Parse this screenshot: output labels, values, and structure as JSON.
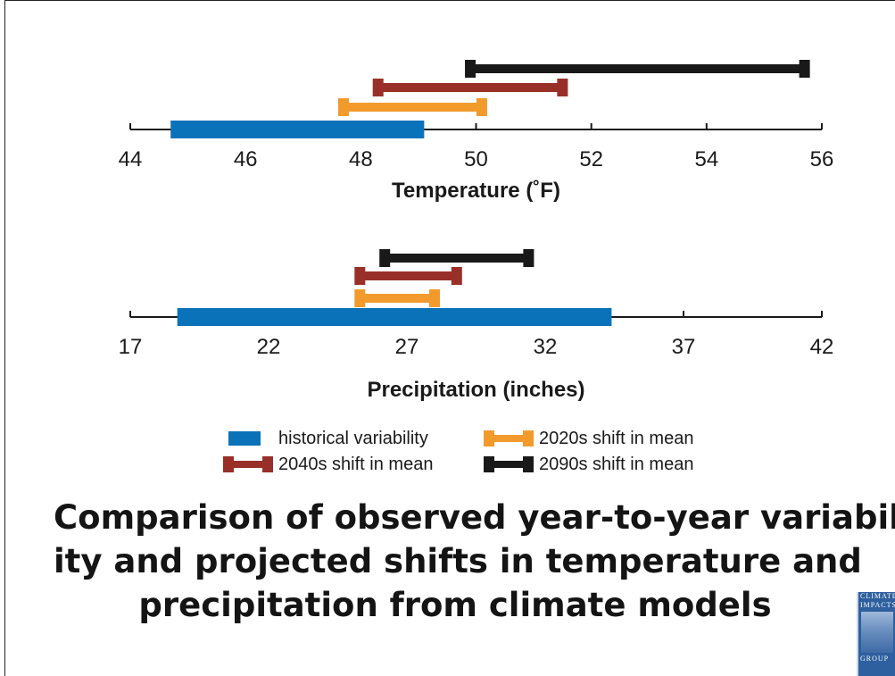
{
  "colors": {
    "historical": "#0a72b9",
    "s2020": "#f39a2d",
    "s2040": "#983029",
    "s2090": "#191919",
    "axis": "#1a1a1a"
  },
  "legend": {
    "historical": "historical variability",
    "s2020": "2020s shift in mean",
    "s2040": "2040s shift in mean",
    "s2090": "2090s shift in mean"
  },
  "caption": {
    "line1": "Comparison of observed year-to-year variabil-",
    "line2": "ity and projected shifts in temperature and",
    "line3": "precipitation from climate models"
  },
  "logo": {
    "line1": "CLIMATE",
    "line2": "IMPACTS",
    "line3": "GROUP"
  },
  "chart_data": [
    {
      "type": "range-bar",
      "xlabel": "Temperature (˚F)",
      "xlim": [
        44,
        56
      ],
      "ticks": [
        44,
        46,
        48,
        50,
        52,
        54,
        56
      ],
      "series": [
        {
          "name": "historical variability",
          "range": [
            44.7,
            49.1
          ],
          "color": "#0a72b9"
        },
        {
          "name": "2020s shift in mean",
          "range": [
            47.7,
            50.1
          ],
          "color": "#f39a2d"
        },
        {
          "name": "2040s shift in mean",
          "range": [
            48.3,
            51.5
          ],
          "color": "#983029"
        },
        {
          "name": "2090s shift in mean",
          "range": [
            49.9,
            55.7
          ],
          "color": "#191919"
        }
      ]
    },
    {
      "type": "range-bar",
      "xlabel": "Precipitation (inches)",
      "xlim": [
        17,
        42
      ],
      "ticks": [
        17,
        22,
        27,
        32,
        37,
        42
      ],
      "series": [
        {
          "name": "historical variability",
          "range": [
            18.7,
            34.4
          ],
          "color": "#0a72b9"
        },
        {
          "name": "2020s shift in mean",
          "range": [
            25.3,
            28.0
          ],
          "color": "#f39a2d"
        },
        {
          "name": "2040s shift in mean",
          "range": [
            25.3,
            28.8
          ],
          "color": "#983029"
        },
        {
          "name": "2090s shift in mean",
          "range": [
            26.2,
            31.4
          ],
          "color": "#191919"
        }
      ]
    }
  ]
}
